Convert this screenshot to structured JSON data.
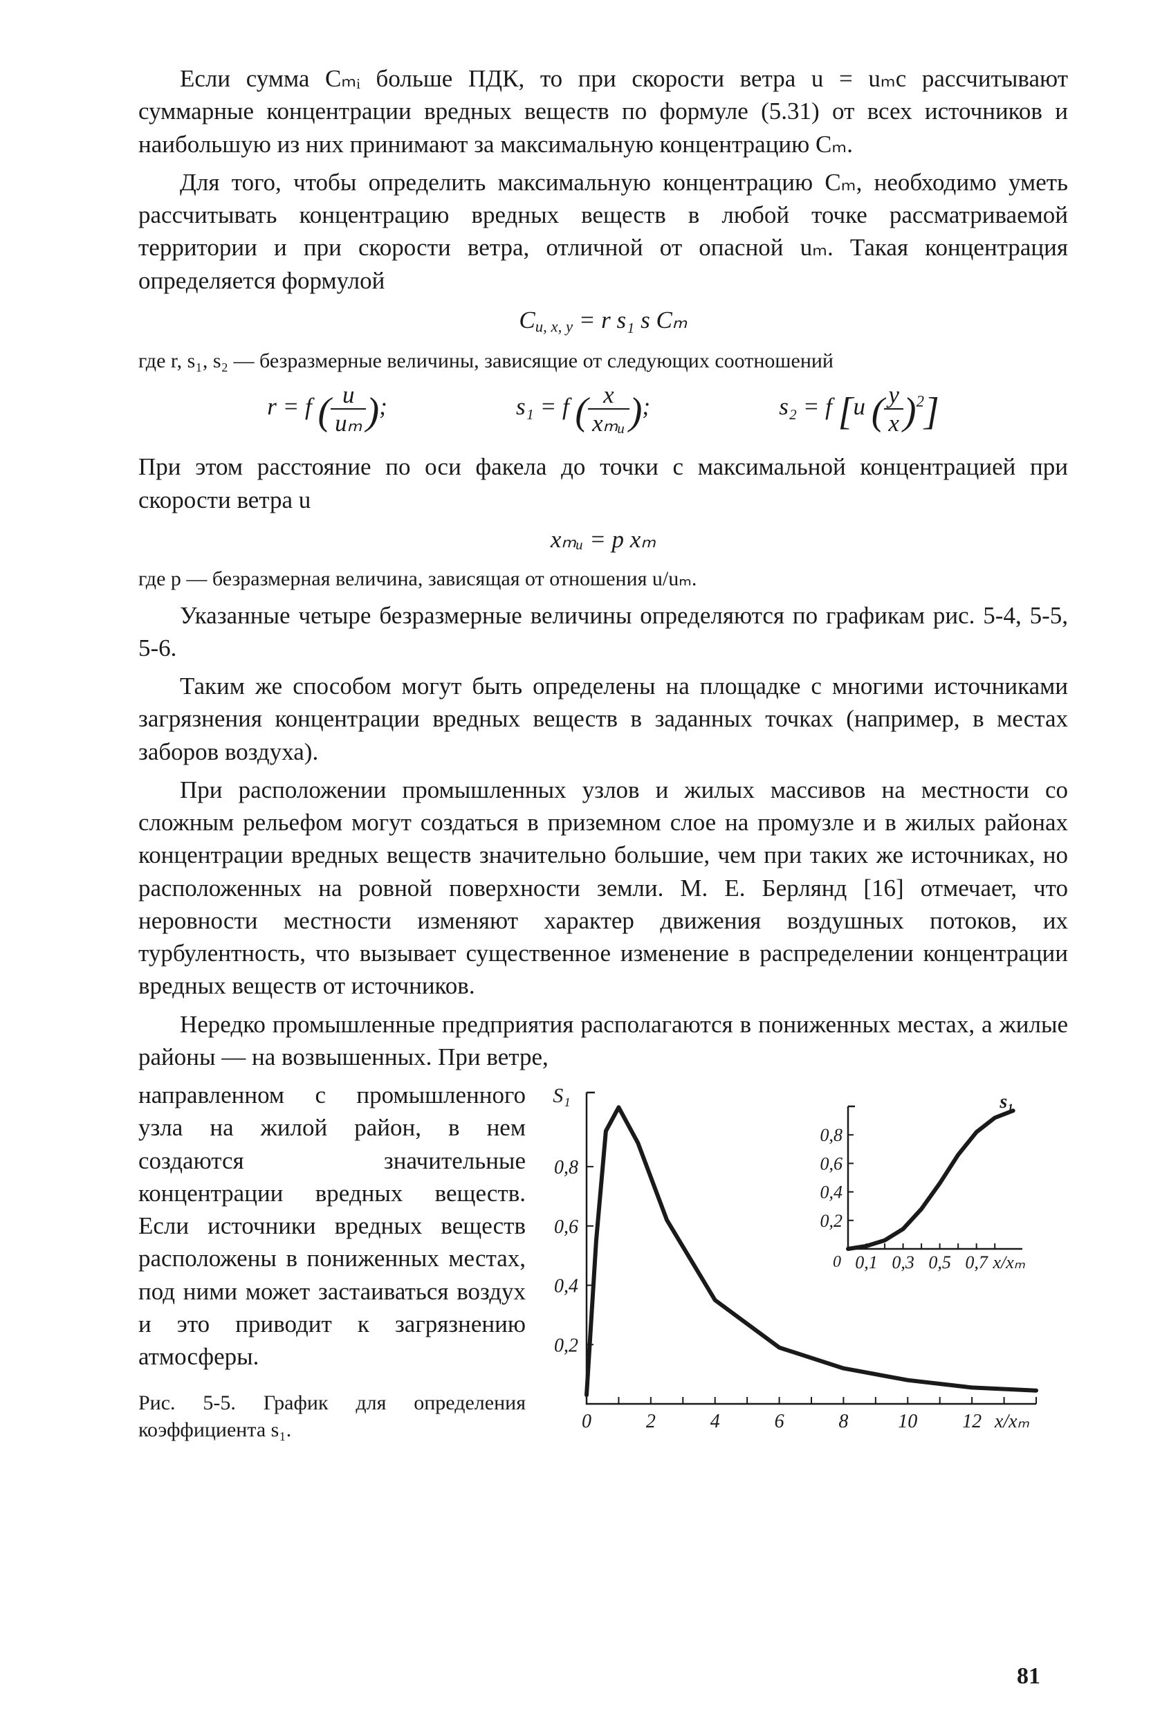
{
  "para1": "Если сумма Cₘᵢ больше ПДК, то при скорости ветра u = uₘc рассчитывают суммарные концентрации вредных веществ по формуле (5.31) от всех источников и наибольшую из них принимают за максимальную концентрацию Cₘ.",
  "para2": "Для того, чтобы определить максимальную концентрацию Cₘ, необходимо уметь рассчитывать концентрацию вредных веществ в любой точке рассматриваемой территории и при скорости ветра, отличной от опасной uₘ. Такая концентрация определяется формулой",
  "formula1_lhs": "C",
  "formula1_sub": "u, x, y",
  "formula1_rhs": " = r s₁ s  Cₘ",
  "small1": "где r, s₁, s₂ — безразмерные величины, зависящие от следующих соотношений",
  "f_r_lhs": "r = f",
  "f_r_num": "u",
  "f_r_den": "uₘ",
  "f_s1_lhs": "s₁ = f",
  "f_s1_num": "x",
  "f_s1_den": "xₘᵤ",
  "f_s2_lhs": "s₂ = f",
  "f_s2_inner_u": "u",
  "f_s2_num": "y",
  "f_s2_den": "x",
  "para3": "При этом расстояние по оси факела до точки с максимальной концентрацией при скорости ветра u",
  "formula2": "xₘᵤ = p xₘ",
  "small2": "где p — безразмерная величина, зависящая от отношения u/uₘ.",
  "para4": "Указанные четыре безразмерные величины определяются по графикам рис. 5-4, 5-5, 5-6.",
  "para5": "Таким же способом могут быть определены на площадке с многими источниками загрязнения концентрации вредных веществ в заданных точках (например, в местах заборов воздуха).",
  "para6": "При расположении промышленных узлов и жилых массивов на местности со сложным рельефом могут создаться в приземном слое на промузле и в жилых районах концентрации вредных веществ значительно большие, чем при таких же источниках, но расположенных на ровной поверхности земли. М. Е. Берлянд [16] отмечает, что неровности местности изменяют характер движения воздушных потоков, их турбулентность, что вызывает существенное изменение в распределении концентрации вредных веществ от источников.",
  "para7": "Нередко промышленные предприятия располагаются в пониженных местах, а жилые районы — на возвышенных. При ветре,",
  "para8": "направленном с промышленного узла на жилой район, в нем создаются значительные концентрации вредных веществ. Если источники вредных веществ расположены в пониженных местах, под ними может застаиваться воздух и это приводит к загрязнению атмосферы.",
  "caption": "Рис. 5-5. График для определения коэффициента s₁.",
  "page_number": "81",
  "chart_main": {
    "type": "line",
    "x_ticks": [
      "0",
      "2",
      "4",
      "6",
      "8",
      "10",
      "12"
    ],
    "x_label": "x/xₘ",
    "y_ticks": [
      "0,2",
      "0,4",
      "0,6",
      "0,8"
    ],
    "y_label": "S₁",
    "line_color": "#1a1a1a",
    "background_color": "#ffffff",
    "points": [
      {
        "x": 0.0,
        "y": 0.03
      },
      {
        "x": 0.3,
        "y": 0.55
      },
      {
        "x": 0.6,
        "y": 0.92
      },
      {
        "x": 1.0,
        "y": 1.0
      },
      {
        "x": 1.6,
        "y": 0.88
      },
      {
        "x": 2.5,
        "y": 0.62
      },
      {
        "x": 4.0,
        "y": 0.35
      },
      {
        "x": 6.0,
        "y": 0.19
      },
      {
        "x": 8.0,
        "y": 0.12
      },
      {
        "x": 10.0,
        "y": 0.08
      },
      {
        "x": 12.0,
        "y": 0.055
      },
      {
        "x": 14.0,
        "y": 0.045
      }
    ],
    "x_max": 14.0,
    "y_max": 1.05
  },
  "chart_inset": {
    "type": "line",
    "x_ticks": [
      "0,1",
      "0,3",
      "0,5",
      "0,7"
    ],
    "x_label": "x/xₘ",
    "y_ticks": [
      "0,2",
      "0,4",
      "0,6",
      "0,8"
    ],
    "y_label": "s₁",
    "line_color": "#1a1a1a",
    "points": [
      {
        "x": 0.0,
        "y": 0.0
      },
      {
        "x": 0.1,
        "y": 0.02
      },
      {
        "x": 0.2,
        "y": 0.06
      },
      {
        "x": 0.3,
        "y": 0.14
      },
      {
        "x": 0.4,
        "y": 0.28
      },
      {
        "x": 0.5,
        "y": 0.46
      },
      {
        "x": 0.6,
        "y": 0.66
      },
      {
        "x": 0.7,
        "y": 0.82
      },
      {
        "x": 0.8,
        "y": 0.92
      },
      {
        "x": 0.9,
        "y": 0.97
      }
    ],
    "x_max": 0.95,
    "y_max": 1.0
  }
}
